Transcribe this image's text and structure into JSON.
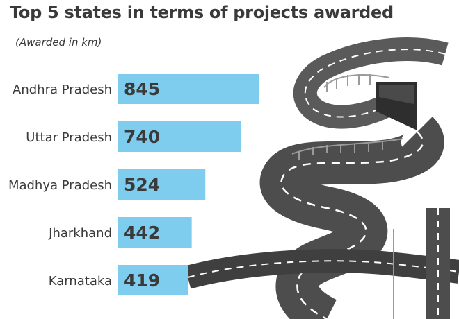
{
  "chart_data": {
    "type": "bar",
    "orientation": "horizontal",
    "title": "Top 5 states in terms of projects awarded",
    "subtitle": "(Awarded in km)",
    "categories": [
      "Andhra Pradesh",
      "Uttar Pradesh",
      "Madhya Pradesh",
      "Jharkhand",
      "Karnataka"
    ],
    "values": [
      845,
      740,
      524,
      442,
      419
    ],
    "data_labels": [
      "845",
      "740",
      "524",
      "442",
      "419"
    ],
    "xlim": [
      0,
      845
    ],
    "grid": false,
    "legend": "none"
  },
  "colors": {
    "bar": "#7fcdee",
    "text": "#3a3a3a",
    "road": "#5a5a5a",
    "road_dark": "#3f3f3f",
    "lane": "#ffffff"
  },
  "decoration": "winding-road-illustration-icon"
}
